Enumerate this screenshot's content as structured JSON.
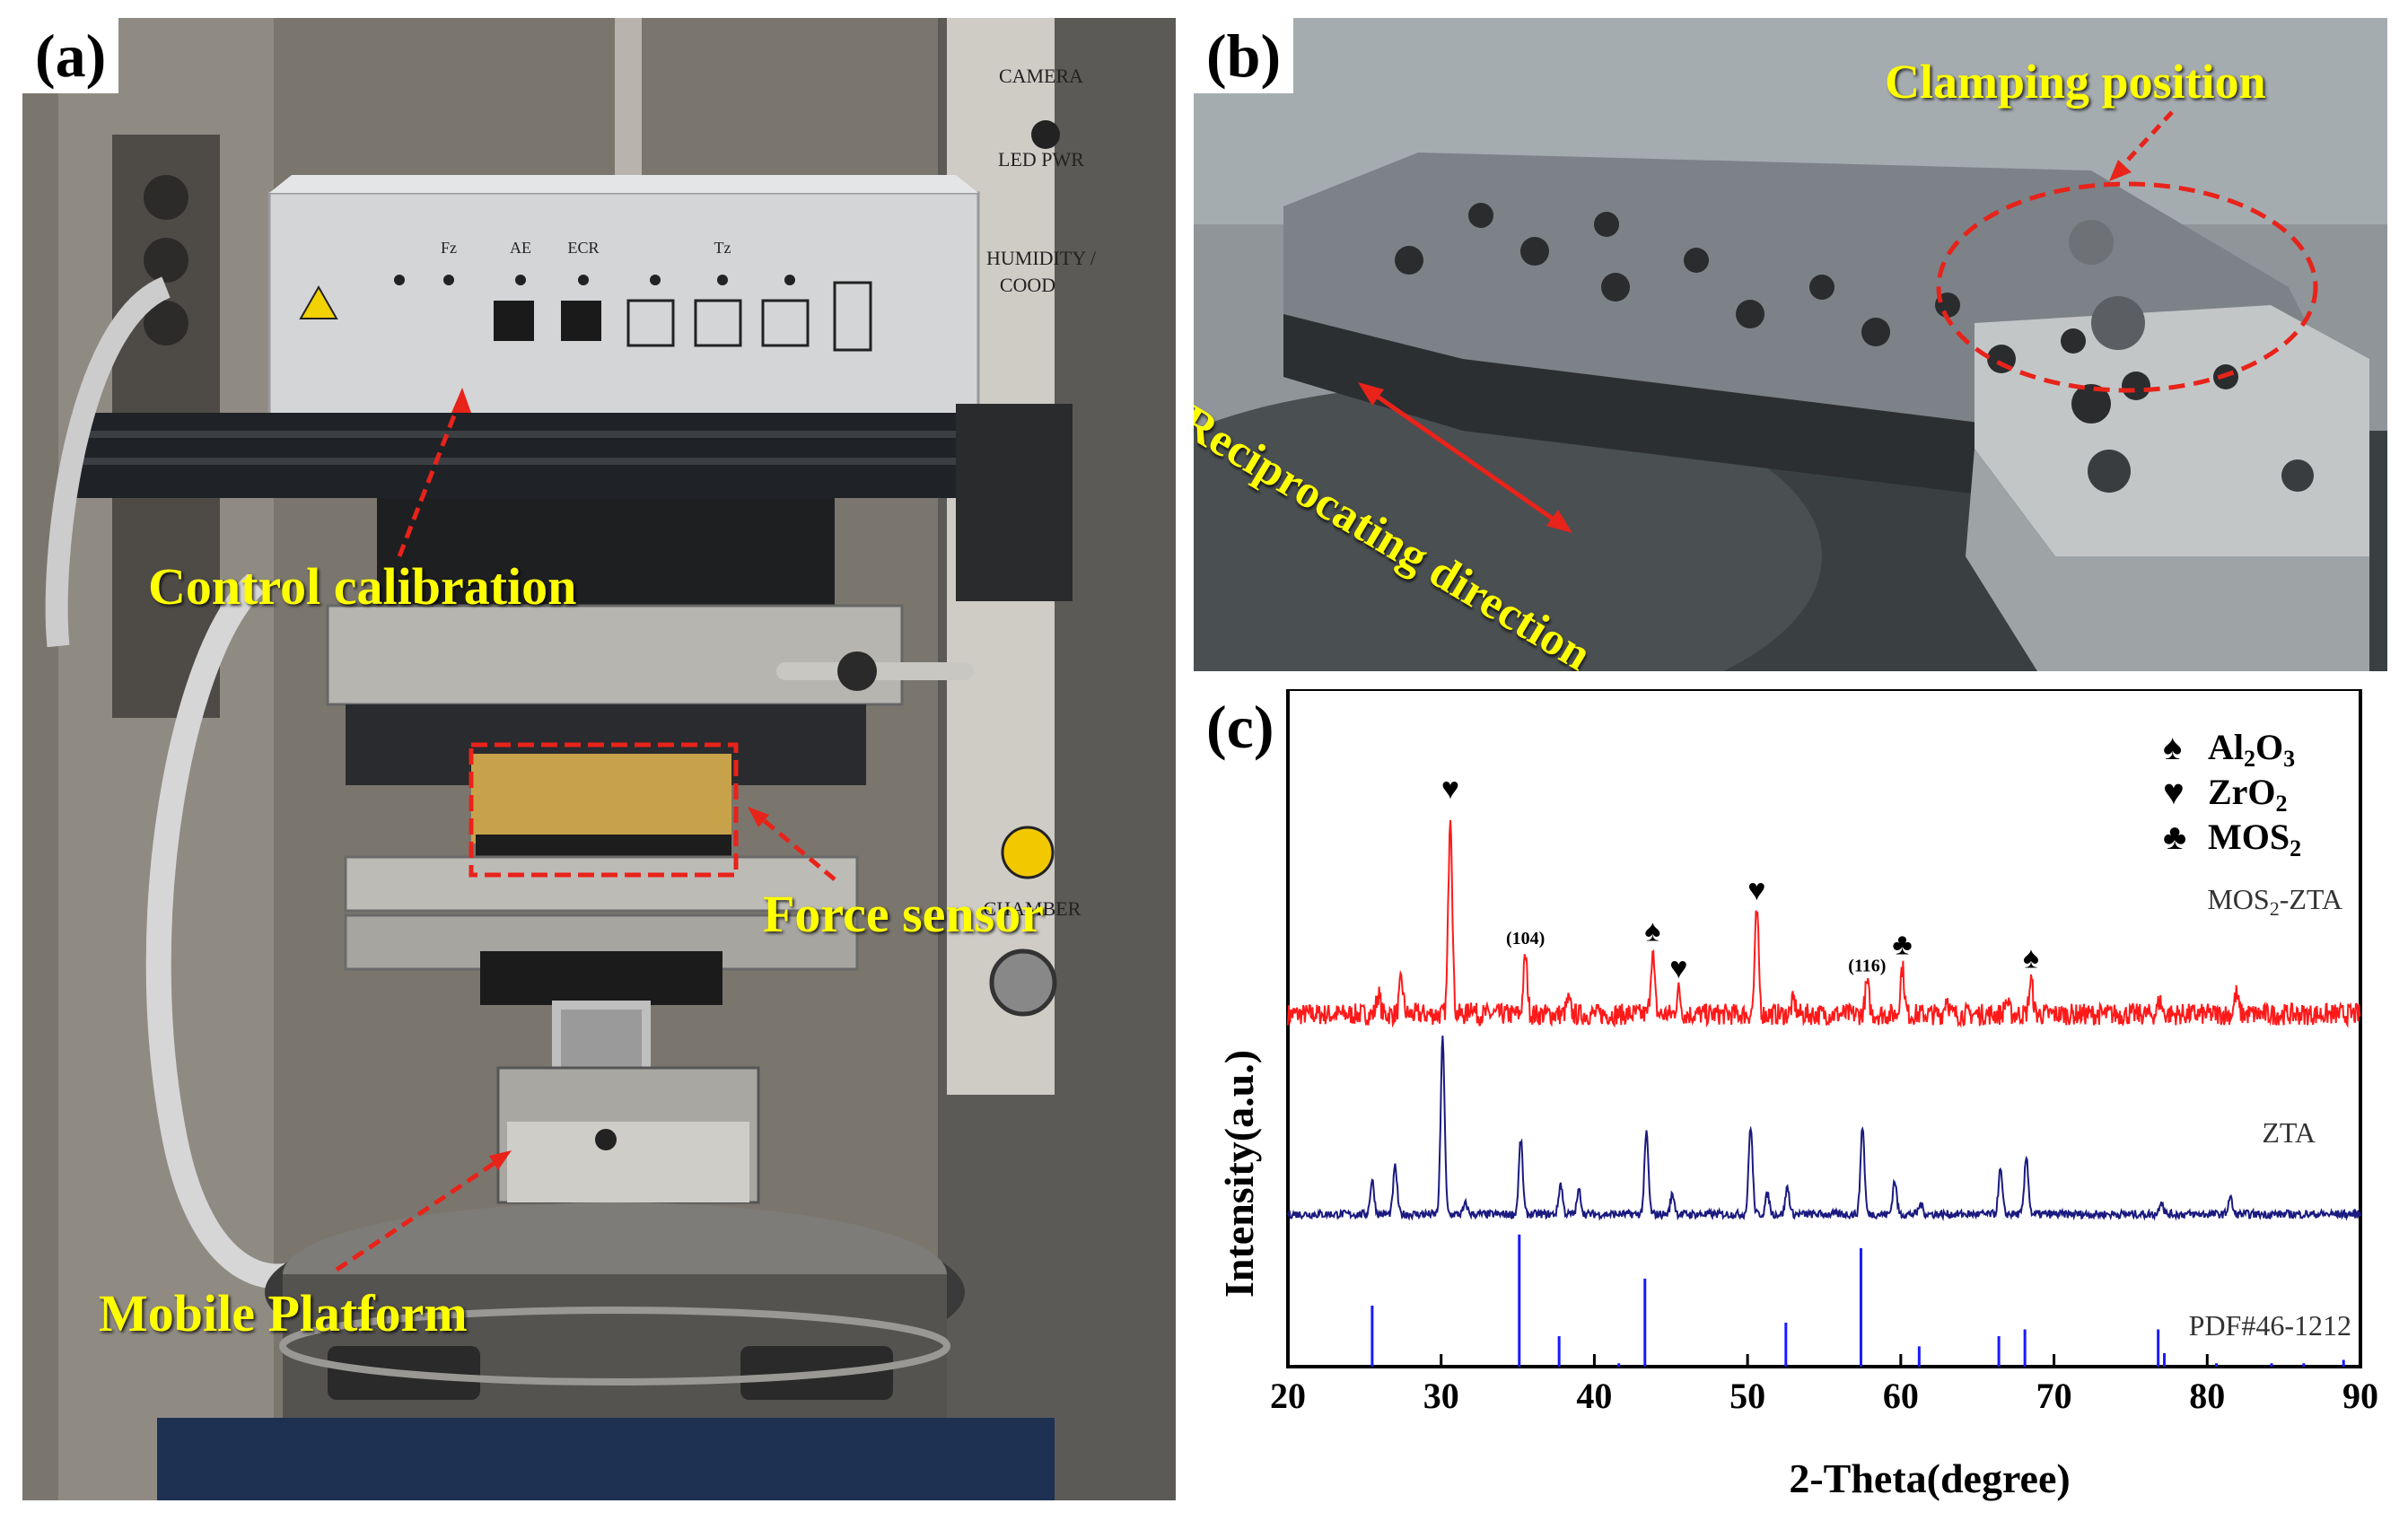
{
  "panels": {
    "a": {
      "letter": "(a)",
      "labels": {
        "control_calibration": "Control calibration",
        "force_sensor": "Force sensor",
        "mobile_platform": "Mobile Platform"
      },
      "device_text": {
        "camera": "CAMERA",
        "led_pwr": "LED PWR",
        "humidity": "HUMIDITY /",
        "cood": "COOD",
        "chamber": "CHAMBER",
        "fz": "Fz",
        "ae": "AE",
        "ecr": "ECR",
        "tz": "Tz"
      }
    },
    "b": {
      "letter": "(b)",
      "labels": {
        "clamping_position": "Clamping position",
        "reciprocating_direction": "Reciprocating direction"
      }
    },
    "c": {
      "letter": "(c)"
    }
  },
  "colors": {
    "label_yellow": "#ffff00",
    "annotation_red": "#e8231a",
    "mos2_zta": "#ff1a1a",
    "zta": "#1a1a80",
    "pdf": "#1a1aff"
  },
  "chart_data": {
    "type": "line",
    "xlabel": "2-Theta(degree)",
    "ylabel": "Intensity(a.u.)",
    "xlim": [
      20,
      90
    ],
    "x_ticks": [
      20,
      30,
      40,
      50,
      60,
      70,
      80,
      90
    ],
    "legend_position": "top-right",
    "legend": [
      {
        "symbol": "♠",
        "label": "Al",
        "sub1": "2",
        "mid": "O",
        "sub2": "3"
      },
      {
        "symbol": "♥",
        "label": "ZrO",
        "sub1": "2",
        "mid": "",
        "sub2": ""
      },
      {
        "symbol": "♣",
        "label": "MOS",
        "sub1": "2",
        "mid": "",
        "sub2": ""
      }
    ],
    "series_labels": {
      "mos2_zta": {
        "pre": "MOS",
        "sub": "2",
        "post": "-ZTA"
      },
      "zta": "ZTA",
      "pdf": "PDF#46-1212"
    },
    "peak_annotations": [
      {
        "x": 30.6,
        "symbol": "♥",
        "text": ""
      },
      {
        "x": 35.5,
        "symbol": "",
        "text": "(104)"
      },
      {
        "x": 43.8,
        "symbol": "♠",
        "text": ""
      },
      {
        "x": 45.5,
        "symbol": "♥",
        "text": ""
      },
      {
        "x": 50.6,
        "symbol": "♥",
        "text": ""
      },
      {
        "x": 57.8,
        "symbol": "",
        "text": "(116)"
      },
      {
        "x": 60.1,
        "symbol": "♣",
        "text": ""
      },
      {
        "x": 68.5,
        "symbol": "♠",
        "text": ""
      }
    ],
    "series": [
      {
        "key": "mos2_zta",
        "baseline": 0.52,
        "noise": 0.016,
        "peaks": [
          [
            25.9,
            0.03
          ],
          [
            27.4,
            0.05
          ],
          [
            30.6,
            0.3
          ],
          [
            32.0,
            0.015
          ],
          [
            35.5,
            0.085
          ],
          [
            38.3,
            0.02
          ],
          [
            43.8,
            0.09
          ],
          [
            45.5,
            0.035
          ],
          [
            50.6,
            0.15
          ],
          [
            53.0,
            0.02
          ],
          [
            57.8,
            0.045
          ],
          [
            60.1,
            0.07
          ],
          [
            63.0,
            0.025
          ],
          [
            66.9,
            0.02
          ],
          [
            68.5,
            0.05
          ],
          [
            76.9,
            0.02
          ],
          [
            81.9,
            0.03
          ]
        ]
      },
      {
        "key": "zta",
        "baseline": 0.225,
        "noise": 0.006,
        "peaks": [
          [
            25.5,
            0.05
          ],
          [
            27.0,
            0.07
          ],
          [
            30.1,
            0.26
          ],
          [
            31.6,
            0.015
          ],
          [
            35.2,
            0.11
          ],
          [
            37.8,
            0.045
          ],
          [
            39.0,
            0.035
          ],
          [
            43.4,
            0.12
          ],
          [
            45.1,
            0.03
          ],
          [
            50.2,
            0.13
          ],
          [
            51.3,
            0.03
          ],
          [
            52.6,
            0.04
          ],
          [
            57.5,
            0.13
          ],
          [
            59.6,
            0.05
          ],
          [
            61.3,
            0.015
          ],
          [
            66.5,
            0.065
          ],
          [
            68.2,
            0.085
          ],
          [
            77.0,
            0.02
          ],
          [
            81.5,
            0.025
          ]
        ]
      }
    ],
    "sticks": {
      "key": "pdf",
      "positions": [
        25.5,
        35.1,
        37.7,
        41.6,
        43.3,
        52.5,
        57.4,
        61.2,
        66.4,
        68.1,
        76.8,
        77.2,
        80.6,
        84.2,
        86.3,
        88.9
      ],
      "heights": [
        0.09,
        0.195,
        0.045,
        0.005,
        0.13,
        0.065,
        0.175,
        0.03,
        0.045,
        0.055,
        0.055,
        0.02,
        0.005,
        0.005,
        0.005,
        0.01
      ]
    }
  }
}
